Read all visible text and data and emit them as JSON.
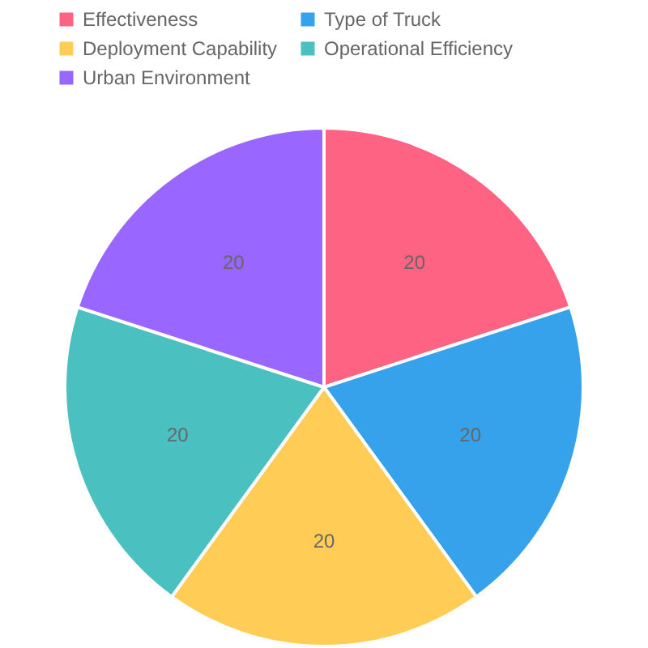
{
  "chart_data": {
    "type": "pie",
    "categories": [
      "Effectiveness",
      "Type of Truck",
      "Deployment Capability",
      "Operational Efficiency",
      "Urban Environment"
    ],
    "values": [
      20,
      20,
      20,
      20,
      20
    ],
    "colors": [
      "#ff6384",
      "#36a2eb",
      "#ffcd56",
      "#4bc0c0",
      "#9966ff"
    ],
    "data_labels": true,
    "legend": "top"
  }
}
